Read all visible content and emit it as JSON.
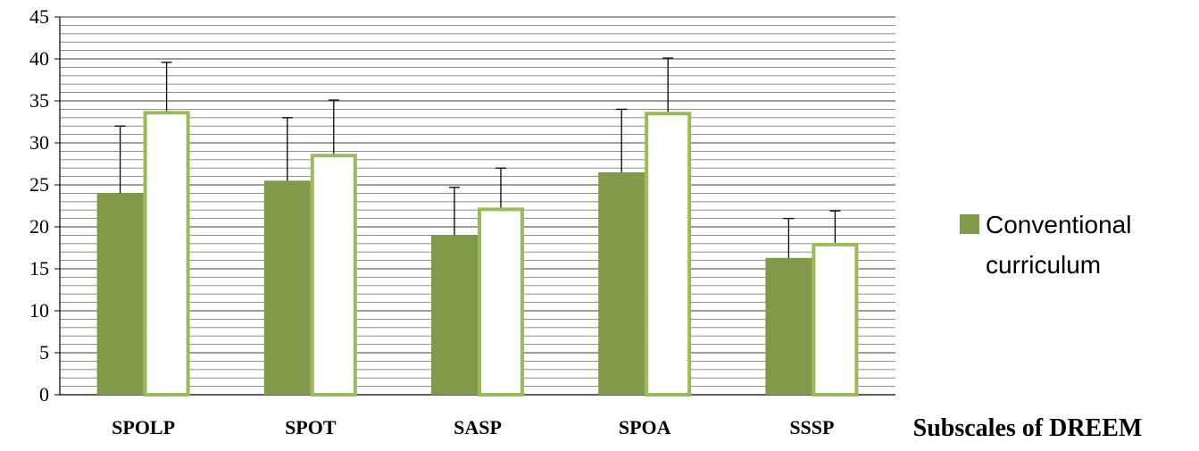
{
  "chart_data": {
    "type": "bar",
    "categories": [
      "SPOLP",
      "SPOT",
      "SASP",
      "SPOA",
      "SSSP"
    ],
    "series": [
      {
        "name": "Conventional curriculum",
        "values": [
          24,
          25.5,
          19,
          26.5,
          16.3
        ],
        "error": [
          8,
          7.5,
          5.7,
          7.5,
          4.7
        ],
        "color": "#7f9a48",
        "style": "filled"
      },
      {
        "values": [
          33.8,
          28.7,
          22.3,
          33.7,
          18.1
        ],
        "error": [
          5.8,
          6.4,
          4.7,
          6.4,
          3.8
        ],
        "color": "#9bbb59",
        "style": "outline"
      }
    ],
    "ylim": [
      0,
      45
    ],
    "yticks": [
      "0",
      "5",
      "10",
      "15",
      "20",
      "25",
      "30",
      "35",
      "40",
      "45"
    ],
    "xlabel": "Subscales of DREEM",
    "ylabel": "",
    "grid": true,
    "legend_position": "right",
    "colors": {
      "plot_background": "#ffffff",
      "grid": "#7f7f7f",
      "axis": "#000000"
    }
  }
}
